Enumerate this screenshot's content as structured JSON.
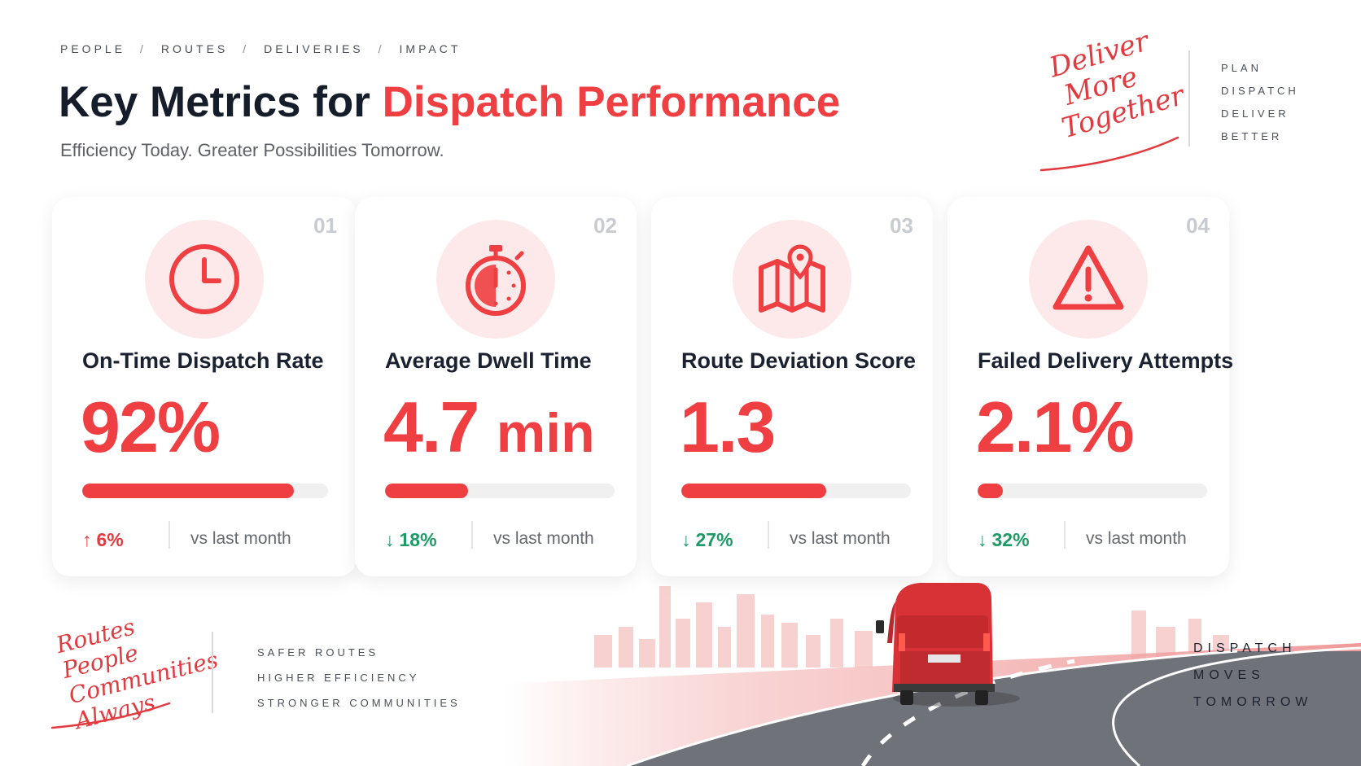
{
  "breadcrumb": [
    "PEOPLE",
    "ROUTES",
    "DELIVERIES",
    "IMPACT"
  ],
  "breadcrumb_separator": "/",
  "header": {
    "title_prefix": "Key Metrics for ",
    "title_accent": "Dispatch Performance",
    "subtitle": "Efficiency Today. Greater Possibilities Tomorrow."
  },
  "brand_script": [
    "Deliver",
    "More",
    "Together"
  ],
  "tagline_words": [
    "PLAN",
    "DISPATCH",
    "DELIVER",
    "BETTER"
  ],
  "metrics": [
    {
      "number": "01",
      "icon": "clock-icon",
      "label": "On-Time Dispatch Rate",
      "value": "92%",
      "unit": "",
      "progress_percent": 86,
      "trend": "up",
      "delta": "6%",
      "comparison": "vs last month"
    },
    {
      "number": "02",
      "icon": "stopwatch-icon",
      "label": "Average Dwell Time",
      "value": "4.7",
      "unit": "min",
      "progress_percent": 36,
      "trend": "down",
      "delta": "18%",
      "comparison": "vs last month"
    },
    {
      "number": "03",
      "icon": "map-pin-icon",
      "label": "Route Deviation Score",
      "value": "1.3",
      "unit": "",
      "progress_percent": 63,
      "trend": "down",
      "delta": "27%",
      "comparison": "vs last month"
    },
    {
      "number": "04",
      "icon": "warning-triangle-icon",
      "label": "Failed Delivery Attempts",
      "value": "2.1%",
      "unit": "",
      "progress_percent": 11,
      "trend": "down",
      "delta": "32%",
      "comparison": "vs last month"
    }
  ],
  "footer_script": [
    "Routes",
    "People",
    "Communities",
    "Always"
  ],
  "footer_values": [
    "SAFER ROUTES",
    "HIGHER EFFICIENCY",
    "STRONGER COMMUNITIES"
  ],
  "footer_motto": [
    "DISPATCH",
    "MOVES",
    "TOMORROW"
  ],
  "colors": {
    "accent": "#ef3f42",
    "positive": "#1d9a66",
    "icon_bg": "#fde9e9",
    "van": "#d93236"
  }
}
